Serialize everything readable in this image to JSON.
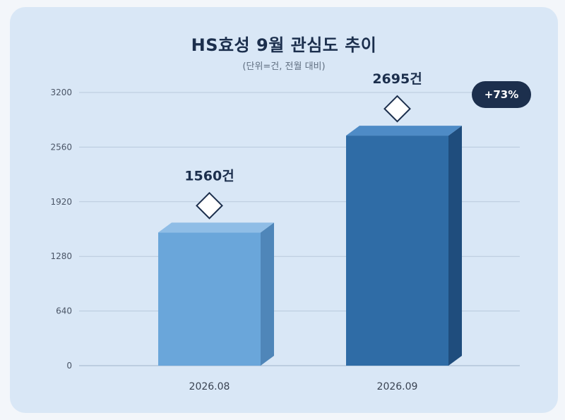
{
  "chart_data": {
    "type": "bar",
    "title": "HS효성 9월 관심도 추이",
    "subtitle": "(단위=건, 전월 대비)",
    "categories": [
      "2026.08",
      "2026.09"
    ],
    "values": [
      1560,
      2695
    ],
    "data_labels": [
      "1560건",
      "2695건"
    ],
    "yticks": [
      "0",
      "640",
      "1280",
      "1920",
      "2560",
      "3200"
    ],
    "ylim": [
      0,
      3200
    ],
    "grid": true,
    "change_badge": "+73%",
    "colors": {
      "bar_2026_08": "#6aa6da",
      "bar_2026_09": "#2f6ca6",
      "badge": "#1c2f4d",
      "grid": "#b9c9dc"
    }
  }
}
